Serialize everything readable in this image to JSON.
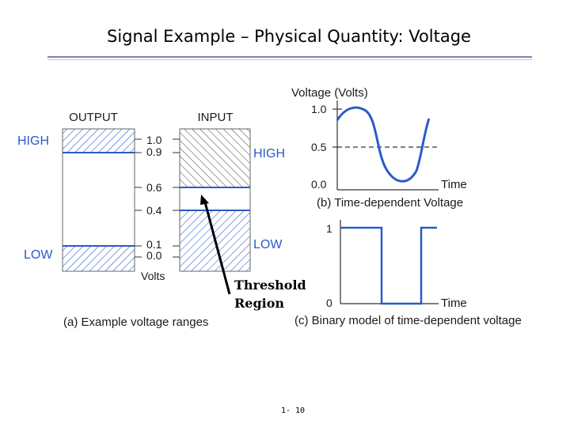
{
  "title": "Signal Example – Physical Quantity: Voltage",
  "page_number": "1- 10",
  "colors": {
    "accent": "#2a5bc7",
    "rule": "#7f7fb8",
    "curve": "#2a5bc7"
  },
  "panel_a": {
    "output_header": "OUTPUT",
    "input_header": "INPUT",
    "output_high": "HIGH",
    "output_low": "LOW",
    "input_high": "HIGH",
    "input_low": "LOW",
    "ticks": [
      "1.0",
      "0.9",
      "0.6",
      "0.4",
      "0.1",
      "0.0"
    ],
    "axis_label": "Volts",
    "caption": "(a) Example voltage ranges"
  },
  "threshold": {
    "line1": "Threshold",
    "line2": "Region"
  },
  "panel_b": {
    "ylabel": "Voltage (Volts)",
    "ticks": [
      "1.0",
      "0.5",
      "0.0"
    ],
    "xlabel": "Time",
    "caption": "(b) Time-dependent Voltage"
  },
  "panel_c": {
    "ticks": [
      "1",
      "0"
    ],
    "xlabel": "Time",
    "caption": "(c) Binary model of time-dependent voltage"
  }
}
